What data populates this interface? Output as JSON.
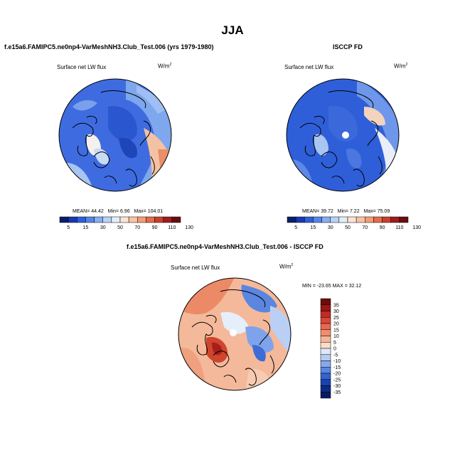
{
  "title": "JJA",
  "panels": [
    {
      "id": "model",
      "subtitle": "f.e15a6.FAMIPC5.ne0np4-VarMeshNH3.Club_Test.006 (yrs 1979-1980)",
      "variable": "Surface net LW flux",
      "units": "W/m",
      "units_exp": "2",
      "stats": {
        "mean_label": "MEAN=",
        "mean": "44.42",
        "min_label": "Min=",
        "min": "6.96",
        "max_label": "Max=",
        "max": "104.01"
      }
    },
    {
      "id": "obs",
      "subtitle": "ISCCP FD",
      "variable": "Surface net LW flux",
      "units": "W/m",
      "units_exp": "2",
      "stats": {
        "mean_label": "MEAN=",
        "mean": "39.72",
        "min_label": "Min=",
        "min": "7.22",
        "max_label": "Max=",
        "max": "75.09"
      }
    },
    {
      "id": "diff",
      "subtitle": "f.e15a6.FAMIPC5.ne0np4-VarMeshNH3.Club_Test.006 - ISCCP FD",
      "variable": "Surface net LW flux",
      "units": "W/m",
      "units_exp": "2",
      "stats_text": "MIN = -23.65  MAX =  32.12"
    }
  ],
  "colorbar_abs": {
    "labels": [
      "5",
      "15",
      "30",
      "50",
      "70",
      "90",
      "110",
      "130"
    ],
    "colors": [
      "#0a1f6b",
      "#1838b0",
      "#2f5fd8",
      "#5585e6",
      "#86aef0",
      "#b9d1f5",
      "#e3ecf9",
      "#fbe3d4",
      "#f8c3a5",
      "#f39c76",
      "#e46b4b",
      "#c8402c",
      "#9e1d1d",
      "#6b0d0d"
    ]
  },
  "colorbar_diff": {
    "labels": [
      "35",
      "30",
      "25",
      "20",
      "15",
      "10",
      "5",
      "0",
      "-5",
      "-10",
      "-15",
      "-20",
      "-25",
      "-30",
      "-35"
    ],
    "colors": [
      "#6e0c0c",
      "#9b1616",
      "#c12b23",
      "#d9463a",
      "#e8684f",
      "#f08e6d",
      "#f6b597",
      "#fbdcc8",
      "#dde8f8",
      "#b4cbf2",
      "#86a9ea",
      "#5a86df",
      "#3462cf",
      "#1a42ae",
      "#0e2a86",
      "#0a1a62"
    ]
  }
}
